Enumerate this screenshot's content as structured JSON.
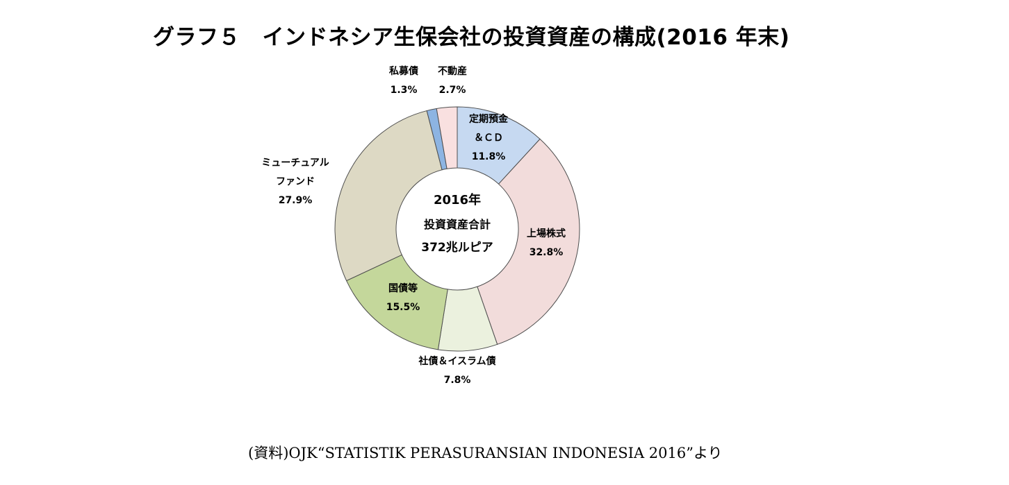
{
  "chart_data": {
    "type": "pie",
    "donut": true,
    "title": "グラフ５　インドネシア生保会社の投資資産の構成(2016 年末)",
    "center_label": [
      "2016年",
      "投資資産合計",
      "372兆ルピア"
    ],
    "slices": [
      {
        "label": [
          "定期預金",
          "＆ＣＤ"
        ],
        "value_label": "11.8%",
        "value": 11.8,
        "color": "#c6d9f1"
      },
      {
        "label": [
          "上場株式"
        ],
        "value_label": "32.8%",
        "value": 32.8,
        "color": "#f2dcdb"
      },
      {
        "label": [
          "社債＆イスラム債"
        ],
        "value_label": "7.8%",
        "value": 7.8,
        "color": "#ebf1de"
      },
      {
        "label": [
          "国債等"
        ],
        "value_label": "15.5%",
        "value": 15.5,
        "color": "#c4d79b"
      },
      {
        "label": [
          "ミューチュアル",
          "ファンド"
        ],
        "value_label": "27.9%",
        "value": 27.9,
        "color": "#ddd9c4"
      },
      {
        "label": [
          "私募債"
        ],
        "value_label": "1.3%",
        "value": 1.3,
        "color": "#8db4e2"
      },
      {
        "label": [
          "不動産"
        ],
        "value_label": "2.7%",
        "value": 2.7,
        "color": "#f9e0e0"
      }
    ],
    "source": "(資料)OJK“STATISTIK PERASURANSIAN INDONESIA 2016”より"
  }
}
